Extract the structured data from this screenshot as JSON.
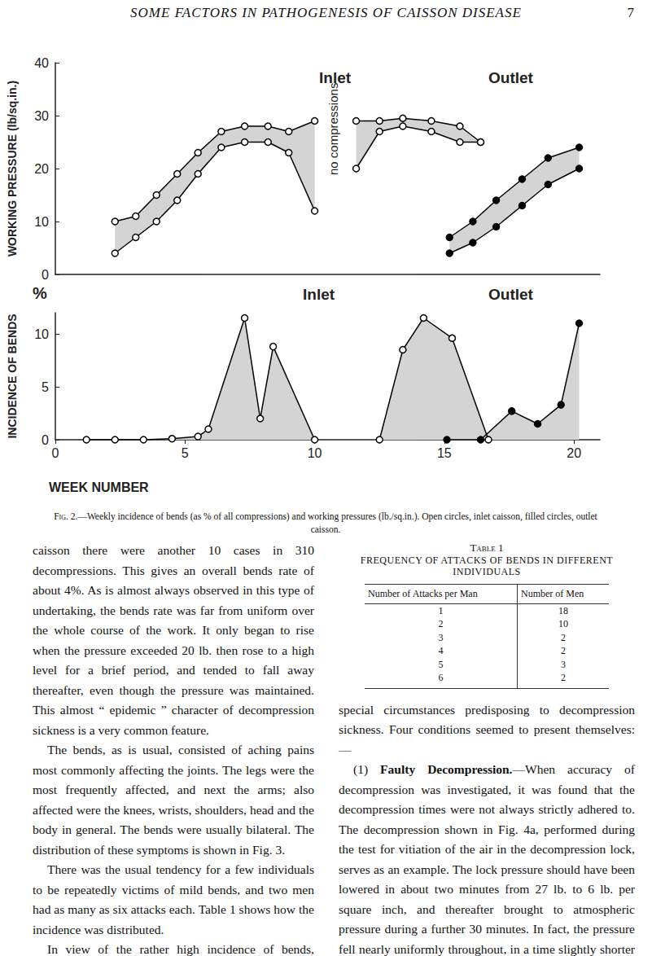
{
  "header": {
    "title": "SOME FACTORS IN PATHOGENESIS OF CAISSON DISEASE",
    "page": "7"
  },
  "chart_data": [
    {
      "type": "band",
      "y_label": "WORKING PRESSURE (lb/sq.in.)",
      "annotations": [
        "Inlet",
        "Outlet",
        "no compressions"
      ],
      "xlim": [
        0,
        21
      ],
      "xticks": [
        0,
        5,
        10,
        15,
        20
      ],
      "ylim": [
        0,
        40
      ],
      "yticks": [
        0,
        10,
        20,
        30,
        40
      ],
      "tick_labels": "y",
      "grid": false,
      "series": [
        {
          "marker": "open",
          "color": "#000000",
          "x": [
            2.3,
            3.1,
            3.9,
            4.7,
            5.5,
            6.4,
            7.3,
            8.2,
            9.0,
            10.0
          ],
          "upper": [
            10,
            11,
            15,
            19,
            23,
            27,
            28,
            28,
            27,
            29
          ],
          "lower": [
            4,
            7,
            10,
            14,
            19,
            24,
            25,
            25,
            23,
            12
          ]
        },
        {
          "marker": "open",
          "color": "#000000",
          "x": [
            11.6,
            12.5,
            13.4,
            14.5,
            15.6,
            16.4
          ],
          "upper": [
            29,
            29,
            29.5,
            29,
            28,
            25
          ],
          "lower": [
            20,
            27,
            28,
            27,
            25,
            25
          ]
        },
        {
          "marker": "filled",
          "color": "#000000",
          "x": [
            15.2,
            16.1,
            17.0,
            18.0,
            19.0,
            20.2
          ],
          "upper": [
            7,
            10,
            14,
            18,
            22,
            24
          ],
          "lower": [
            4,
            6,
            9,
            13,
            17,
            20
          ]
        }
      ]
    },
    {
      "type": "area",
      "y_label": "INCIDENCE OF BENDS",
      "y_unit": "%",
      "x_label": "WEEK NUMBER",
      "annotations": [
        "Inlet",
        "Outlet"
      ],
      "xlim": [
        0,
        21
      ],
      "xticks": [
        0,
        5,
        10,
        15,
        20
      ],
      "ylim": [
        0,
        12
      ],
      "yticks": [
        0,
        5,
        10
      ],
      "grid": false,
      "series": [
        {
          "marker": "open",
          "color": "#000000",
          "x": [
            1.2,
            2.3,
            3.4,
            4.5,
            5.5,
            5.9,
            7.3,
            7.9,
            8.4,
            10.0
          ],
          "values": [
            0,
            0,
            0,
            0.1,
            0.3,
            1,
            11.5,
            2,
            8.8,
            0
          ]
        },
        {
          "marker": "open",
          "color": "#000000",
          "x": [
            12.5,
            13.4,
            14.2,
            15.3,
            16.7
          ],
          "values": [
            0,
            8.5,
            11.5,
            9.6,
            0
          ]
        },
        {
          "marker": "filled",
          "color": "#000000",
          "x": [
            15.1,
            16.4,
            17.6,
            18.6,
            19.5,
            20.2
          ],
          "values": [
            0,
            0,
            2.7,
            1.5,
            3.3,
            11
          ]
        }
      ]
    }
  ],
  "caption": {
    "label": "Fig. 2.",
    "text": "—Weekly incidence of bends (as % of all compressions) and working pressures (lb./sq.in.). Open circles, inlet caisson, filled circles, outlet caisson."
  },
  "left_column": [
    "caisson there were another 10 cases in 310 decompressions. This gives an overall bends rate of about 4%. As is almost always observed in this type of undertaking, the bends rate was far from uniform over the whole course of the work. It only began to rise when the pressure exceeded 20 lb. then rose to a high level for a brief period, and tended to fall away thereafter, even though the pressure was maintained. This almost “ epidemic ” character of decompression sickness is a very common feature.",
    "The bends, as is usual, consisted of aching pains most commonly affecting the joints. The legs were the most frequently affected, and next the arms; also affected were the knees, wrists, shoulders, head and the body in general. The bends were usually bilateral. The distribution of these symptoms is shown in Fig. 3.",
    "There was the usual tendency for a few individuals to be repeatedly victims of mild bends, and two men had as many as six attacks each. Table 1 shows how the incidence was distributed.",
    "In view of the rather high incidence of bends, particularly in the shift workers at special times, an attempt was made to define whether there were any"
  ],
  "table": {
    "title": "Table 1",
    "caption": "FREQUENCY OF ATTACKS OF BENDS IN DIFFERENT INDIVIDUALS",
    "header": [
      "Number of Attacks per Man",
      "Number of Men"
    ],
    "rows": [
      [
        1,
        18
      ],
      [
        2,
        10
      ],
      [
        3,
        2
      ],
      [
        4,
        2
      ],
      [
        5,
        3
      ],
      [
        6,
        2
      ]
    ]
  },
  "right_column": [
    {
      "text": "special circumstances predisposing to decompression sickness. Four conditions seemed to present themselves:—"
    },
    {
      "number": "(1)",
      "heading": "Faulty Decompression.",
      "text": "—When accuracy of decompression was investigated, it was found that the decompression times were not always strictly adhered to. The decompression shown in Fig. 4a, performed during the test for vitiation of the air in the decompression lock, serves as an example. The lock pressure should have been lowered in about two minutes from 27 lb. to 6 lb. per square inch, and thereafter brought to atmospheric pressure during a further 30 minutes. In fact, the pressure fell nearly uniformly throughout, in a time slightly shorter than the total laid down for the decompression."
    }
  ]
}
